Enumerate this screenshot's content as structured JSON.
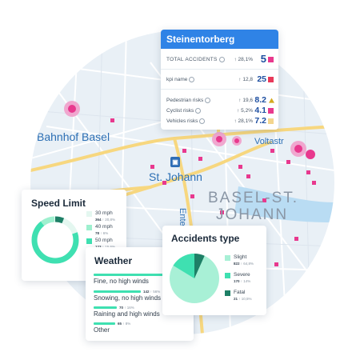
{
  "map": {
    "labels": {
      "station": "Bahnhof Basel",
      "area": "St. Johann",
      "street": "Voltastr",
      "street2": "Ente"
    },
    "district_lines": [
      "BASEL-ST.",
      "JOHANN"
    ],
    "station_icon": "train-station-icon"
  },
  "popup": {
    "title": "Steinentorberg",
    "rows": [
      {
        "label": "TOTAL ACCIDENTS",
        "trend": "↑ 28,1%",
        "value": "5",
        "color": "#e8398e",
        "marker": "square"
      },
      {
        "label": "kpi name",
        "trend": "↑ 12,8",
        "value": "25",
        "color": "#e8395a",
        "marker": "square"
      },
      {
        "label": "Pedestrian risks",
        "trend": "↑ 19,6",
        "value": "8.2",
        "color": "#d4a91f",
        "marker": "warning-triangle"
      },
      {
        "label": "Cyclist risks",
        "trend": "↑ 5,2%",
        "value": "4.1",
        "color": "#e8398e",
        "marker": "square"
      },
      {
        "label": "Vehicles risks",
        "trend": "↑ 28,1%",
        "value": "7.2",
        "color": "#f3d58e",
        "marker": "square"
      }
    ]
  },
  "speed_limit": {
    "title": "Speed Limit",
    "items": [
      {
        "label": "30 mph",
        "count": "364",
        "pct": "↑ 20,8%",
        "color": "#e4f7f0"
      },
      {
        "label": "40 mph",
        "count": "78",
        "pct": "↑ 6%",
        "color": "#9ef0cf"
      },
      {
        "label": "50 mph",
        "count": "123",
        "pct": "↑ 15,6%",
        "color": "#3fe0b1"
      }
    ],
    "dark_segment_color": "#1e7f66"
  },
  "weather": {
    "title": "Weather",
    "items": [
      {
        "label": "Fine, no high winds",
        "count": "",
        "pct": "",
        "share": 1.0
      },
      {
        "label": "Snowing, no high winds",
        "count": "142",
        "pct": "↑ 56%",
        "share": 0.52
      },
      {
        "label": "Raining and high winds",
        "count": "70",
        "pct": "↑ 16%",
        "share": 0.26
      },
      {
        "label": "Other",
        "count": "65",
        "pct": "↑ 8%",
        "share": 0.24
      }
    ],
    "bar_color": "#3fe0b1"
  },
  "accidents_type": {
    "title": "Accidents type",
    "items": [
      {
        "label": "Slight",
        "count": "822",
        "pct": "↑ 64,8%",
        "color": "#a8f0d6"
      },
      {
        "label": "Severe",
        "count": "170",
        "pct": "↑ 14%",
        "color": "#3fe0b1"
      },
      {
        "label": "Fatal",
        "count": "21",
        "pct": "↑ 10,5%",
        "color": "#1e7f66"
      }
    ]
  }
}
